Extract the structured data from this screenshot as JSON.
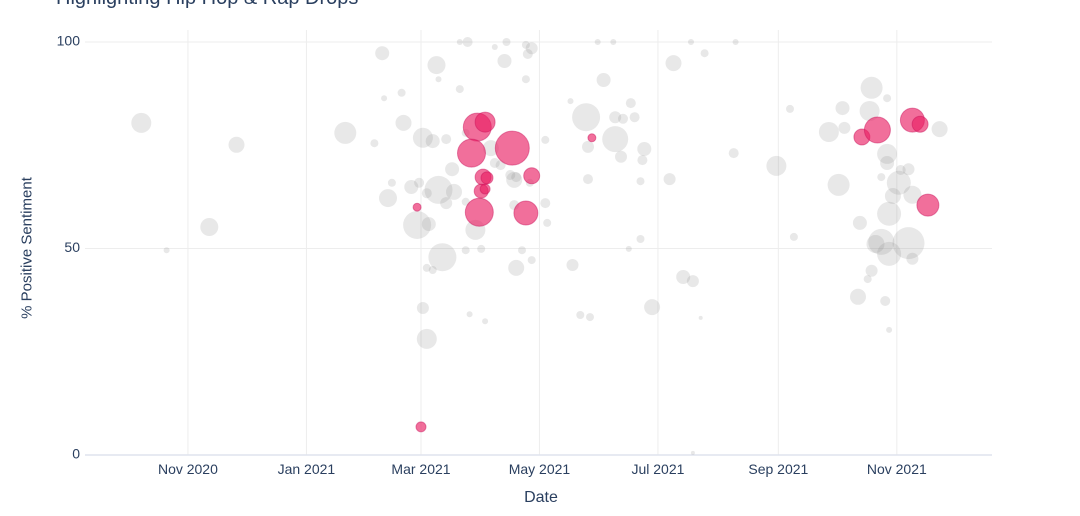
{
  "chart_data": {
    "type": "scatter",
    "title": "Highlighting Hip Hop & Rap Drops",
    "xlabel": "Date",
    "ylabel": "% Positive Sentiment",
    "x_domain": [
      "2020-09-09",
      "2021-12-20"
    ],
    "ylim": [
      0,
      100
    ],
    "grid": true,
    "legend": "none",
    "background_color": "#ffffff",
    "font_color": "#2a3f5f",
    "grid_color": "#ededed",
    "axis_line_color": "#dfe3ee",
    "x_ticks": [
      {
        "date": "2020-11-01",
        "label": "Nov 2020"
      },
      {
        "date": "2021-01-01",
        "label": "Jan 2021"
      },
      {
        "date": "2021-03-01",
        "label": "Mar 2021"
      },
      {
        "date": "2021-05-01",
        "label": "May 2021"
      },
      {
        "date": "2021-07-01",
        "label": "Jul 2021"
      },
      {
        "date": "2021-09-01",
        "label": "Sep 2021"
      },
      {
        "date": "2021-11-01",
        "label": "Nov 2021"
      }
    ],
    "y_ticks": [
      {
        "value": 0,
        "label": "0"
      },
      {
        "value": 50,
        "label": "50"
      },
      {
        "value": 100,
        "label": "100"
      }
    ],
    "point_fields": [
      "date",
      "sentiment_pct",
      "marker_radius_px"
    ],
    "series": [
      {
        "id": "other_genres",
        "marker_name": "bubble-other-genre",
        "color": "rgba(130,130,130,0.18)",
        "stroke": "none",
        "points": [
          [
            "2020-10-08",
            80.4,
            10
          ],
          [
            "2020-11-26",
            75.1,
            8
          ],
          [
            "2020-11-12",
            55.2,
            9
          ],
          [
            "2020-10-21",
            49.6,
            3
          ],
          [
            "2021-02-09",
            97.3,
            7
          ],
          [
            "2021-03-21",
            100,
            3
          ],
          [
            "2021-03-25",
            100,
            5
          ],
          [
            "2021-04-14",
            100,
            4
          ],
          [
            "2021-04-08",
            98.8,
            3
          ],
          [
            "2021-04-24",
            99.3,
            4
          ],
          [
            "2021-04-27",
            98.5,
            6
          ],
          [
            "2021-04-25",
            97.1,
            5
          ],
          [
            "2021-04-13",
            95.4,
            7
          ],
          [
            "2021-04-24",
            91.0,
            4
          ],
          [
            "2021-03-21",
            88.6,
            4
          ],
          [
            "2021-03-09",
            94.4,
            9
          ],
          [
            "2021-03-10",
            91.0,
            3
          ],
          [
            "2021-02-10",
            86.4,
            3
          ],
          [
            "2021-02-19",
            87.7,
            4
          ],
          [
            "2021-02-20",
            80.4,
            8
          ],
          [
            "2021-01-21",
            78.0,
            11
          ],
          [
            "2021-02-05",
            75.5,
            4
          ],
          [
            "2021-03-02",
            76.8,
            10
          ],
          [
            "2021-03-07",
            76.0,
            7
          ],
          [
            "2021-03-14",
            76.5,
            5
          ],
          [
            "2021-03-17",
            69.2,
            7
          ],
          [
            "2021-03-24",
            78.0,
            4
          ],
          [
            "2021-04-06",
            74.3,
            8
          ],
          [
            "2021-04-08",
            70.7,
            5
          ],
          [
            "2021-04-16",
            67.8,
            5
          ],
          [
            "2021-04-19",
            67.3,
            5
          ],
          [
            "2021-04-26",
            65.9,
            4
          ],
          [
            "2021-05-04",
            76.3,
            4
          ],
          [
            "2021-02-14",
            65.9,
            4
          ],
          [
            "2021-02-12",
            62.2,
            9
          ],
          [
            "2021-02-24",
            64.9,
            7
          ],
          [
            "2021-02-28",
            65.9,
            5
          ],
          [
            "2021-03-04",
            63.4,
            5
          ],
          [
            "2021-03-10",
            64.2,
            14
          ],
          [
            "2021-03-18",
            63.7,
            8
          ],
          [
            "2021-03-14",
            61.0,
            6
          ],
          [
            "2021-03-24",
            61.3,
            4
          ],
          [
            "2021-02-27",
            55.7,
            14
          ],
          [
            "2021-03-05",
            55.9,
            7
          ],
          [
            "2021-03-29",
            54.5,
            10
          ],
          [
            "2021-04-11",
            70.2,
            5
          ],
          [
            "2021-04-18",
            66.6,
            8
          ],
          [
            "2021-04-18",
            60.5,
            5
          ],
          [
            "2021-05-04",
            61.0,
            5
          ],
          [
            "2021-05-05",
            56.2,
            4
          ],
          [
            "2021-03-12",
            47.9,
            14
          ],
          [
            "2021-03-24",
            49.6,
            4
          ],
          [
            "2021-04-01",
            49.9,
            4
          ],
          [
            "2021-03-04",
            45.3,
            4
          ],
          [
            "2021-03-07",
            44.8,
            4
          ],
          [
            "2021-04-19",
            45.3,
            8
          ],
          [
            "2021-04-27",
            47.2,
            4
          ],
          [
            "2021-04-22",
            49.6,
            4
          ],
          [
            "2021-03-02",
            35.6,
            6
          ],
          [
            "2021-03-26",
            34.1,
            3
          ],
          [
            "2021-04-03",
            32.4,
            3
          ],
          [
            "2021-03-04",
            28.1,
            10
          ],
          [
            "2021-05-31",
            100,
            3
          ],
          [
            "2021-06-08",
            100,
            3
          ],
          [
            "2021-07-18",
            100,
            3
          ],
          [
            "2021-08-10",
            100,
            3
          ],
          [
            "2021-07-25",
            97.3,
            4
          ],
          [
            "2021-07-09",
            94.9,
            8
          ],
          [
            "2021-06-03",
            90.8,
            7
          ],
          [
            "2021-05-17",
            85.7,
            3
          ],
          [
            "2021-05-25",
            81.8,
            14
          ],
          [
            "2021-06-09",
            81.8,
            6
          ],
          [
            "2021-06-13",
            81.4,
            5
          ],
          [
            "2021-06-19",
            81.8,
            5
          ],
          [
            "2021-06-17",
            85.2,
            5
          ],
          [
            "2021-05-26",
            74.6,
            6
          ],
          [
            "2021-06-09",
            76.5,
            13
          ],
          [
            "2021-06-12",
            72.2,
            6
          ],
          [
            "2021-06-24",
            74.1,
            7
          ],
          [
            "2021-06-23",
            71.4,
            5
          ],
          [
            "2021-05-26",
            66.8,
            5
          ],
          [
            "2021-06-22",
            66.3,
            4
          ],
          [
            "2021-07-07",
            66.8,
            6
          ],
          [
            "2021-08-09",
            73.1,
            5
          ],
          [
            "2021-08-31",
            70.0,
            10
          ],
          [
            "2021-09-07",
            83.8,
            4
          ],
          [
            "2021-06-22",
            52.3,
            4
          ],
          [
            "2021-06-16",
            49.9,
            3
          ],
          [
            "2021-05-18",
            46.0,
            6
          ],
          [
            "2021-07-14",
            43.1,
            7
          ],
          [
            "2021-07-19",
            42.1,
            6
          ],
          [
            "2021-06-28",
            35.8,
            8
          ],
          [
            "2021-05-22",
            33.9,
            4
          ],
          [
            "2021-05-27",
            33.4,
            4
          ],
          [
            "2021-07-23",
            33.2,
            2
          ],
          [
            "2021-09-09",
            52.8,
            4
          ],
          [
            "2021-07-19",
            0.5,
            2
          ],
          [
            "2021-10-19",
            88.9,
            11
          ],
          [
            "2021-10-27",
            86.4,
            4
          ],
          [
            "2021-10-04",
            84.0,
            7
          ],
          [
            "2021-10-18",
            83.3,
            10
          ],
          [
            "2021-10-05",
            79.2,
            6
          ],
          [
            "2021-09-27",
            78.2,
            10
          ],
          [
            "2021-11-23",
            78.9,
            8
          ],
          [
            "2021-10-27",
            72.9,
            10
          ],
          [
            "2021-10-27",
            70.7,
            7
          ],
          [
            "2021-10-24",
            67.3,
            4
          ],
          [
            "2021-11-03",
            69.0,
            5
          ],
          [
            "2021-11-07",
            69.2,
            6
          ],
          [
            "2021-11-02",
            65.9,
            12
          ],
          [
            "2021-10-02",
            65.4,
            11
          ],
          [
            "2021-10-30",
            62.7,
            8
          ],
          [
            "2021-11-09",
            63.0,
            9
          ],
          [
            "2021-10-28",
            58.4,
            12
          ],
          [
            "2021-10-13",
            56.2,
            7
          ],
          [
            "2021-10-24",
            51.6,
            13
          ],
          [
            "2021-10-21",
            51.1,
            9
          ],
          [
            "2021-11-07",
            51.3,
            16
          ],
          [
            "2021-10-28",
            48.7,
            12
          ],
          [
            "2021-11-09",
            47.5,
            6
          ],
          [
            "2021-10-19",
            44.6,
            6
          ],
          [
            "2021-10-17",
            42.6,
            4
          ],
          [
            "2021-10-12",
            38.3,
            8
          ],
          [
            "2021-10-26",
            37.3,
            5
          ],
          [
            "2021-10-28",
            30.3,
            3
          ]
        ]
      },
      {
        "id": "hip_hop_rap",
        "marker_name": "bubble-hip-hop-rap",
        "color": "rgba(233,30,99,0.64)",
        "stroke": "rgba(200,16,88,0.45)",
        "points": [
          [
            "2021-03-30",
            79.4,
            14
          ],
          [
            "2021-04-03",
            80.6,
            10
          ],
          [
            "2021-03-27",
            73.1,
            14
          ],
          [
            "2021-04-17",
            74.3,
            17
          ],
          [
            "2021-04-27",
            67.6,
            8
          ],
          [
            "2021-04-02",
            67.3,
            8
          ],
          [
            "2021-04-04",
            67.1,
            6
          ],
          [
            "2021-04-01",
            63.9,
            7
          ],
          [
            "2021-04-03",
            64.4,
            5
          ],
          [
            "2021-02-27",
            60.0,
            4
          ],
          [
            "2021-03-31",
            58.8,
            14
          ],
          [
            "2021-04-24",
            58.6,
            12
          ],
          [
            "2021-03-01",
            6.8,
            5
          ],
          [
            "2021-05-28",
            76.8,
            4
          ],
          [
            "2021-10-14",
            77.0,
            8
          ],
          [
            "2021-10-22",
            78.7,
            13
          ],
          [
            "2021-11-09",
            81.1,
            12
          ],
          [
            "2021-11-13",
            80.1,
            8
          ],
          [
            "2021-11-17",
            60.5,
            11
          ]
        ]
      }
    ]
  }
}
